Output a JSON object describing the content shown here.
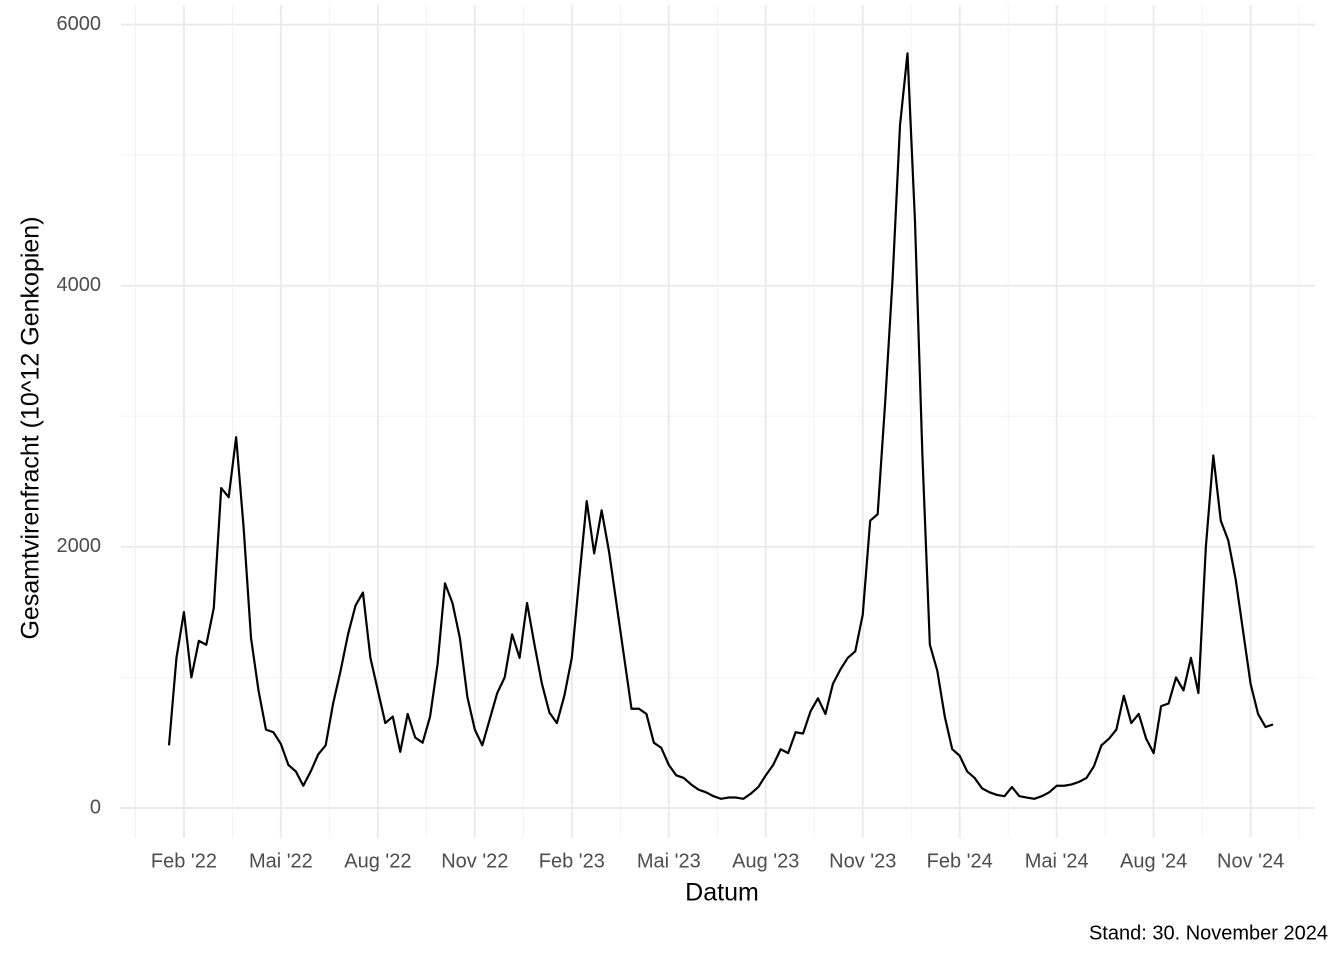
{
  "chart_data": {
    "type": "line",
    "x_label": "Datum",
    "y_label": "Gesamtvirenfracht (10^12 Genkopien)",
    "caption": "Stand: 30. November 2024",
    "color": "#000000",
    "grid": true,
    "ylim": [
      -230,
      6150
    ],
    "yticks": [
      0,
      2000,
      4000,
      6000
    ],
    "categories": [
      null,
      null,
      "Feb '22",
      null,
      null,
      null,
      null,
      null,
      null,
      null,
      null,
      null,
      null,
      null,
      null,
      "Mai '22",
      null,
      null,
      null,
      null,
      null,
      null,
      null,
      null,
      null,
      null,
      null,
      null,
      "Aug '22",
      null,
      null,
      null,
      null,
      null,
      null,
      null,
      null,
      null,
      null,
      null,
      null,
      "Nov '22",
      null,
      null,
      null,
      null,
      null,
      null,
      null,
      null,
      null,
      null,
      null,
      null,
      "Feb '23",
      null,
      null,
      null,
      null,
      null,
      null,
      null,
      null,
      null,
      null,
      null,
      null,
      "Mai '23",
      null,
      null,
      null,
      null,
      null,
      null,
      null,
      null,
      null,
      null,
      null,
      null,
      "Aug '23",
      null,
      null,
      null,
      null,
      null,
      null,
      null,
      null,
      null,
      null,
      null,
      null,
      "Nov '23",
      null,
      null,
      null,
      null,
      null,
      null,
      null,
      null,
      null,
      null,
      null,
      null,
      "Feb '24",
      null,
      null,
      null,
      null,
      null,
      null,
      null,
      null,
      null,
      null,
      null,
      null,
      "Mai '24",
      null,
      null,
      null,
      null,
      null,
      null,
      null,
      null,
      null,
      null,
      null,
      null,
      "Aug '24",
      null,
      null,
      null,
      null,
      null,
      null,
      null,
      null,
      null,
      null,
      null,
      null,
      "Nov '24",
      null,
      null,
      null
    ],
    "values": [
      480,
      1150,
      1500,
      1000,
      1280,
      1250,
      1530,
      2450,
      2380,
      2840,
      2150,
      1300,
      900,
      600,
      580,
      490,
      330,
      280,
      170,
      280,
      410,
      480,
      800,
      1050,
      1330,
      1550,
      1650,
      1150,
      900,
      650,
      700,
      430,
      720,
      540,
      500,
      700,
      1100,
      1720,
      1570,
      1300,
      850,
      600,
      480,
      680,
      880,
      1000,
      1330,
      1150,
      1570,
      1250,
      950,
      730,
      650,
      860,
      1150,
      1760,
      2350,
      1950,
      2280,
      1960,
      1560,
      1160,
      760,
      760,
      720,
      500,
      460,
      330,
      250,
      230,
      180,
      140,
      120,
      90,
      70,
      80,
      80,
      70,
      110,
      160,
      250,
      330,
      450,
      420,
      580,
      570,
      740,
      840,
      720,
      950,
      1060,
      1150,
      1200,
      1480,
      2200,
      2250,
      3100,
      4050,
      5230,
      5780,
      4500,
      2700,
      1250,
      1050,
      700,
      450,
      400,
      280,
      230,
      150,
      120,
      100,
      90,
      160,
      90,
      80,
      70,
      90,
      120,
      170,
      170,
      180,
      200,
      230,
      320,
      480,
      530,
      600,
      860,
      650,
      720,
      530,
      420,
      780,
      800,
      1000,
      900,
      1150,
      880,
      2000,
      2700,
      2200,
      2050,
      1750,
      1350,
      950,
      720,
      620,
      640
    ]
  }
}
